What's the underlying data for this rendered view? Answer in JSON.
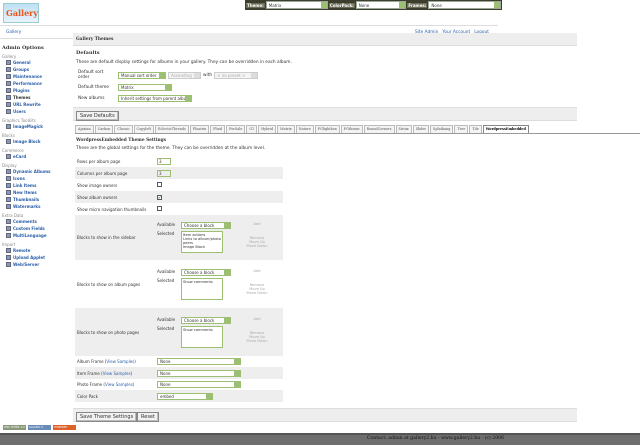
{
  "logo": {
    "text": "Gallery"
  },
  "topbar": {
    "theme_label": "Theme:",
    "theme_value": "Matrix",
    "colorpack_label": "ColorPack:",
    "colorpack_value": "None",
    "frames_label": "Frames:",
    "frames_value": "None"
  },
  "breadcrumb": {
    "home": "Gallery",
    "links": [
      "Site Admin",
      "Your Account",
      "Logout"
    ]
  },
  "sidebar": {
    "title": "Admin Options",
    "groups": [
      {
        "label": "Gallery",
        "items": [
          "General",
          "Groups",
          "Maintenance",
          "Performance",
          "Plugins",
          "Themes",
          "URL Rewrite",
          "Users"
        ]
      },
      {
        "label": "Graphics Toolkits",
        "items": [
          "ImageMagick"
        ]
      },
      {
        "label": "Blocks",
        "items": [
          "Image Block"
        ]
      },
      {
        "label": "Commerce",
        "items": [
          "eCard"
        ]
      },
      {
        "label": "Display",
        "items": [
          "Dynamic Albums",
          "Icons",
          "Link Items",
          "New Items",
          "Thumbnails",
          "Watermarks"
        ]
      },
      {
        "label": "Extra Data",
        "items": [
          "Comments",
          "Custom Fields",
          "MultiLanguage"
        ]
      },
      {
        "label": "Import",
        "items": [
          "Remote",
          "Upload Applet",
          "Web/Server"
        ]
      }
    ],
    "current": "Themes"
  },
  "main": {
    "title": "Gallery Themes",
    "defaults_heading": "Defaults",
    "defaults_desc": "These are default display settings for albums in your gallery. They can be overridden in each album.",
    "sort_label": "Default sort order",
    "sort_value": "Manual sort order",
    "sort_dir": "Ascending",
    "with_label": "with",
    "sort_secondary": "< no preset >",
    "theme_label": "Default theme",
    "theme_value": "Matrix",
    "new_albums_label": "New albums",
    "new_albums_value": "Inherit settings from parent album",
    "save_defaults": "Save Defaults"
  },
  "tabs": [
    "Ajaxian",
    "Carbon",
    "Classic",
    "Copyleft",
    "EclecticThreads",
    "Floatrix",
    "Fluid",
    "ForSale",
    "G1",
    "Hybrid",
    "Matrix",
    "Nature",
    "PGlightbox",
    "PGtheme",
    "RoundCorners",
    "Siriux",
    "Slider",
    "Splatkang",
    "Tree",
    "Tile",
    "WordpressEmbedded"
  ],
  "active_tab": "WordpressEmbedded",
  "settings": {
    "title": "WordpressEmbedded Theme Settings",
    "desc": "These are the global settings for the theme. They can be overridden at the album level.",
    "rows_label": "Rows per album page",
    "rows_value": "3",
    "cols_label": "Columns per album page",
    "cols_value": "3",
    "image_owners_label": "Show image owners",
    "image_owners": false,
    "album_owners_label": "Show album owners",
    "album_owners": true,
    "micro_label": "Show micro navigation thumbnails",
    "micro": false,
    "available_label": "Available",
    "selected_label": "Selected",
    "choose": "Choose a block",
    "add": "Add",
    "remove": "Remove",
    "move_up": "Move Up",
    "move_down": "Move Down",
    "sidebar_blocks_label": "Blocks to show in the sidebar",
    "sidebar_blocks": [
      "Item actions",
      "Links to album/photo peers",
      "Image Block"
    ],
    "album_blocks_label": "Blocks to show on album pages",
    "album_blocks": [
      "Show comments"
    ],
    "photo_blocks_label": "Blocks to show on photo pages",
    "photo_blocks": [
      "Show comments"
    ],
    "view_samples": "View Samples",
    "album_frame_label": "Album Frame",
    "album_frame": "None",
    "item_frame_label": "Item Frame",
    "item_frame": "None",
    "photo_frame_label": "Photo Frame",
    "photo_frame": "None",
    "color_pack_label": "Color Pack",
    "color_pack": "embed",
    "save": "Save Theme Settings",
    "reset": "Reset"
  },
  "badges": [
    "W3C XHTML 1.0",
    "GALLERY 2",
    "POWERED GALLERY"
  ],
  "footer": "Contact: admin at gallery2.hu - www.gallery2.hu - (c) 2006"
}
